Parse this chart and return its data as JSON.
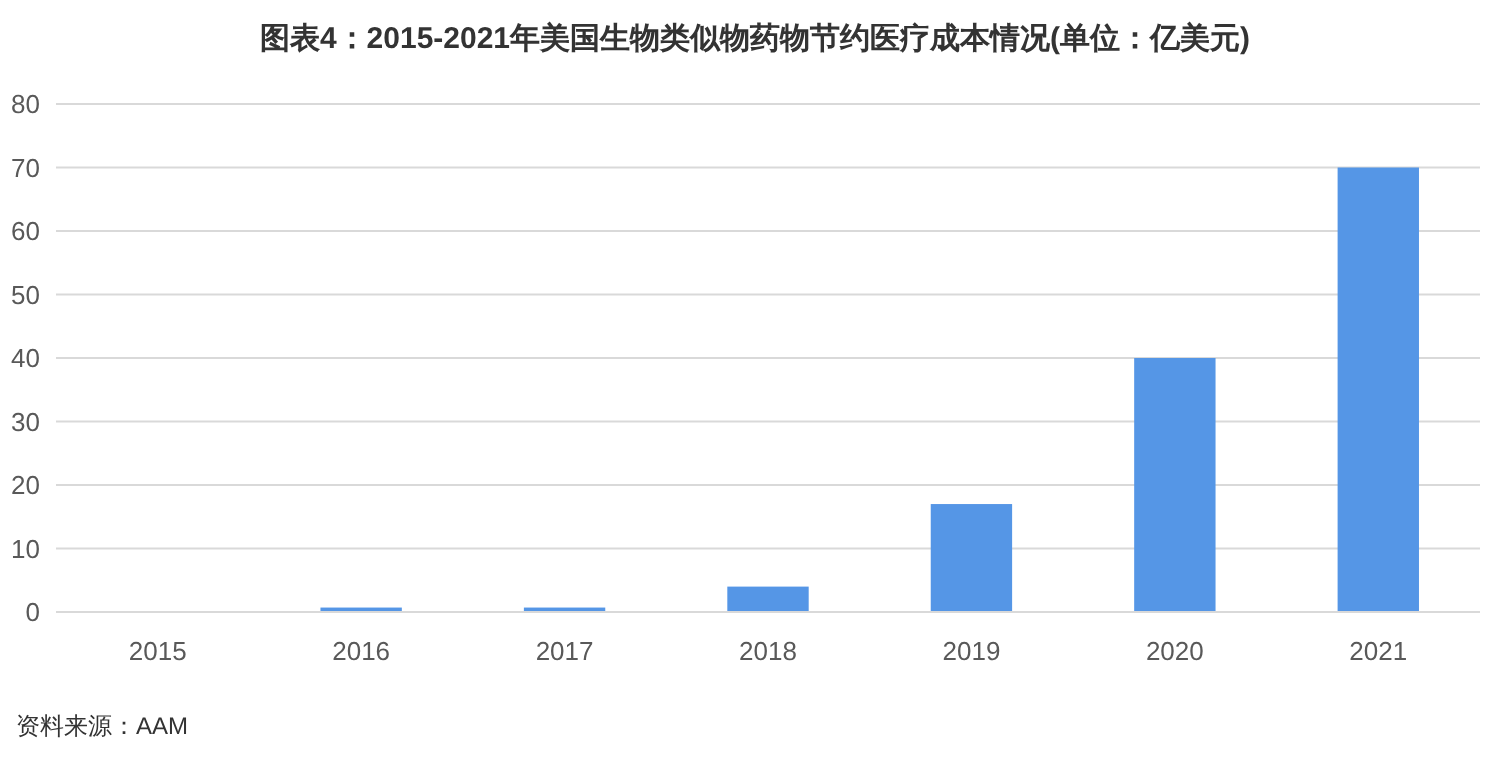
{
  "chart_data": {
    "type": "bar",
    "title": "图表4：2015-2021年美国生物类似物药物节约医疗成本情况(单位：亿美元)",
    "categories": [
      "2015",
      "2016",
      "2017",
      "2018",
      "2019",
      "2020",
      "2021"
    ],
    "values": [
      0,
      0.7,
      0.7,
      4,
      17,
      40,
      70
    ],
    "color": "#5596e6",
    "ylim": [
      0,
      80
    ],
    "yticks": [
      0,
      10,
      20,
      30,
      40,
      50,
      60,
      70,
      80
    ],
    "grid": "y",
    "annotations": [
      "资料来源：AAM"
    ]
  }
}
